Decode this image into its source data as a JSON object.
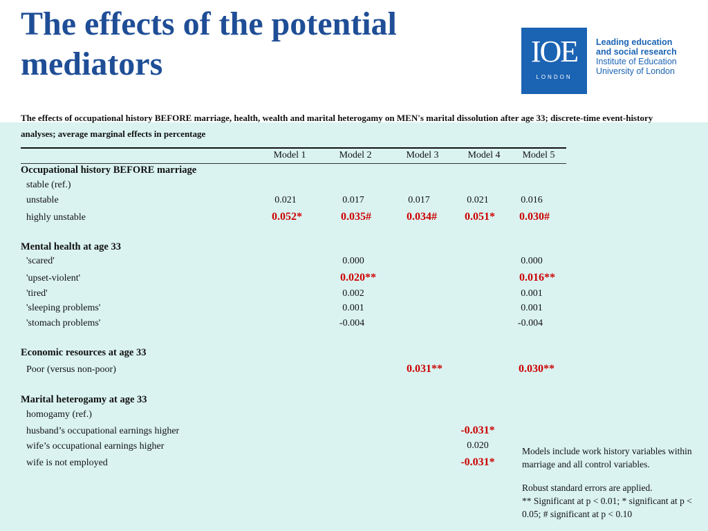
{
  "title": "The effects of the potential mediators",
  "logo": {
    "mark": "IOE",
    "sub": "LONDON",
    "line1": "Leading education",
    "line2": "and social research",
    "line3": "Institute of Education",
    "line4": "University of London"
  },
  "subtitle": "The effects of occupational history BEFORE marriage, health, wealth and marital heterogamy on MEN's marital dissolution after age 33; discrete-time event-history analyses; average marginal effects in percentage",
  "table": {
    "columns": [
      "Model 1",
      "Model 2",
      "Model 3",
      "Model 4",
      "Model 5"
    ],
    "sections": {
      "occ": {
        "title": "Occupational history BEFORE marriage",
        "rows": {
          "stable": {
            "label": "stable (ref.)",
            "values": [
              "",
              "",
              "",
              "",
              ""
            ]
          },
          "unstable": {
            "label": "unstable",
            "values": [
              "0.021",
              "0.017",
              "0.017",
              "0.021",
              "0.016"
            ]
          },
          "highly": {
            "label": "highly unstable",
            "values": [
              "0.052*",
              "0.035#",
              "0.034#",
              "0.051*",
              "0.030#"
            ]
          }
        }
      },
      "mental": {
        "title": "Mental health at age 33",
        "rows": {
          "scared": {
            "label": "'scared'",
            "values": [
              "",
              "0.000",
              "",
              "",
              "0.000"
            ]
          },
          "upset": {
            "label": "'upset-violent'",
            "values": [
              "",
              "0.020**",
              "",
              "",
              "0.016**"
            ]
          },
          "tired": {
            "label": "'tired'",
            "values": [
              "",
              "0.002",
              "",
              "",
              "0.001"
            ]
          },
          "sleeping": {
            "label": "'sleeping problems'",
            "values": [
              "",
              "0.001",
              "",
              "",
              "0.001"
            ]
          },
          "stomach": {
            "label": "'stomach problems'",
            "values": [
              "",
              "-0.004",
              "",
              "",
              "-0.004"
            ]
          }
        }
      },
      "econ": {
        "title": "Economic resources at age 33",
        "rows": {
          "poor": {
            "label": "Poor (versus non-poor)",
            "values": [
              "",
              "",
              "0.031**",
              "",
              "0.030**"
            ]
          }
        }
      },
      "marital": {
        "title": "Marital heterogamy at age 33",
        "rows": {
          "homogamy": {
            "label": "homogamy (ref.)",
            "values": [
              "",
              "",
              "",
              "",
              ""
            ]
          },
          "husband": {
            "label": "husband’s occupational earnings higher",
            "values": [
              "",
              "",
              "",
              "-0.031*",
              ""
            ]
          },
          "wife": {
            "label": "wife’s occupational earnings higher",
            "values": [
              "",
              "",
              "",
              "0.020",
              ""
            ]
          },
          "notemployed": {
            "label": "wife is not employed",
            "values": [
              "",
              "",
              "",
              "-0.031*",
              ""
            ]
          }
        }
      }
    }
  },
  "notes": {
    "p1": "Models include work history variables within marriage and all control variables.",
    "p2a": "Robust standard errors are applied.",
    "p2b": "** Significant at p < 0.01; * significant at p < 0.05; # significant at p < 0.10"
  },
  "colors": {
    "title": "#1f4e96",
    "significant": "#cc0000",
    "band": "#daf3f1",
    "logo": "#1b63b3"
  }
}
